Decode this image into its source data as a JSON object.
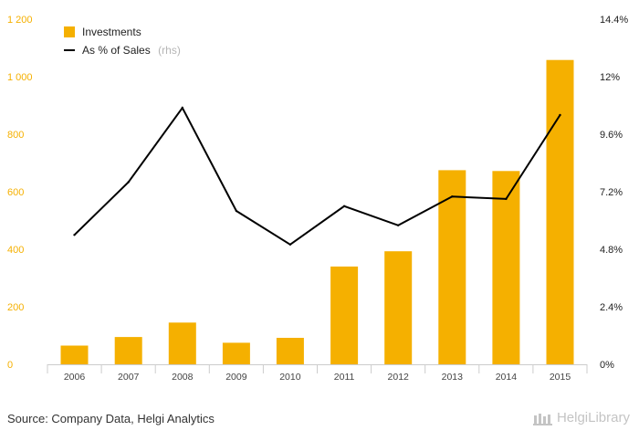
{
  "chart_data": {
    "type": "bar+line",
    "categories": [
      "2006",
      "2007",
      "2008",
      "2009",
      "2010",
      "2011",
      "2012",
      "2013",
      "2014",
      "2015"
    ],
    "series": [
      {
        "name": "Investments",
        "type": "bar",
        "axis": "left",
        "color": "#f5b000",
        "values": [
          65,
          95,
          145,
          75,
          92,
          340,
          393,
          675,
          672,
          1058
        ]
      },
      {
        "name": "As % of Sales",
        "type": "line",
        "axis": "right",
        "color": "#000000",
        "values": [
          5.4,
          7.6,
          10.7,
          6.4,
          5.0,
          6.6,
          5.8,
          7.0,
          6.9,
          10.4
        ]
      }
    ],
    "y_left": {
      "ylim": [
        0,
        1200
      ],
      "ticks": [
        0,
        200,
        400,
        600,
        800,
        1000,
        1200
      ],
      "tick_labels": [
        "0",
        "200",
        "400",
        "600",
        "800",
        "1 000",
        "1 200"
      ],
      "color": "#f5b000"
    },
    "y_right": {
      "ylim": [
        0,
        14.4
      ],
      "ticks": [
        0,
        2.4,
        4.8,
        7.2,
        9.6,
        12,
        14.4
      ],
      "tick_labels": [
        "0%",
        "2.4%",
        "4.8%",
        "7.2%",
        "9.6%",
        "12%",
        "14.4%"
      ]
    },
    "legend": {
      "position": "top-left",
      "items": [
        {
          "label": "Investments"
        },
        {
          "label": "As % of Sales",
          "note": "(rhs)"
        }
      ]
    },
    "grid": false,
    "title": "",
    "xlabel": "",
    "ylabel": ""
  },
  "footer": {
    "source": "Source: Company Data, Helgi Analytics",
    "brand": "HelgiLibrary",
    "brand_icon": "library-building-icon"
  }
}
